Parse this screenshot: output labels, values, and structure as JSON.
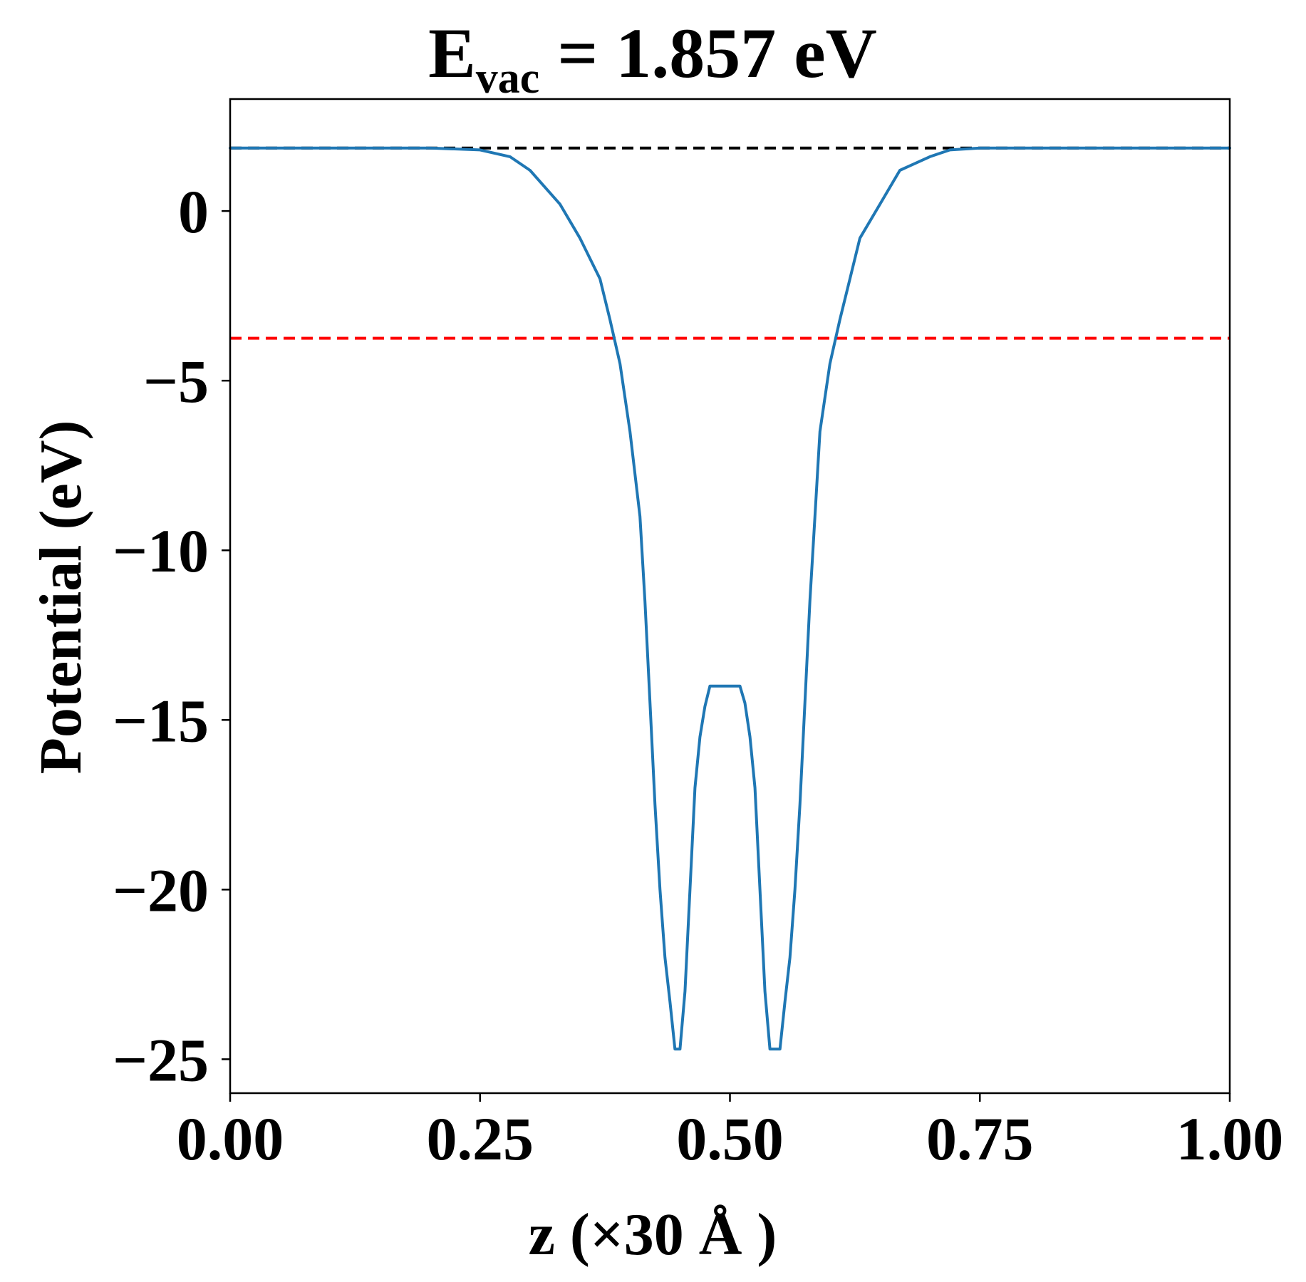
{
  "chart_data": {
    "type": "line",
    "title": {
      "main": "E",
      "subscript": "vac",
      "rest": " = 1.857 eV"
    },
    "xlabel": "z (×30 Å )",
    "ylabel": "Potential (eV)",
    "xlim": [
      0.0,
      1.0
    ],
    "ylim": [
      -26.0,
      3.3
    ],
    "xticks": [
      0.0,
      0.25,
      0.5,
      0.75,
      1.0
    ],
    "xtick_labels": [
      "0.00",
      "0.25",
      "0.50",
      "0.75",
      "1.00"
    ],
    "yticks": [
      0,
      -5,
      -10,
      -15,
      -20,
      -25
    ],
    "ytick_labels": [
      "0",
      "−5",
      "−10",
      "−15",
      "−20",
      "−25"
    ],
    "grid": false,
    "legend": "none",
    "reference_lines": [
      {
        "y": 1.857,
        "color": "#000000",
        "style": "dashed"
      },
      {
        "y": -3.75,
        "color": "#ff0000",
        "style": "dashed"
      }
    ],
    "series": [
      {
        "color": "#1f77b4",
        "x": [
          0.0,
          0.05,
          0.1,
          0.15,
          0.2,
          0.25,
          0.28,
          0.3,
          0.33,
          0.35,
          0.37,
          0.38,
          0.39,
          0.4,
          0.41,
          0.415,
          0.42,
          0.425,
          0.43,
          0.435,
          0.44,
          0.445,
          0.45,
          0.455,
          0.46,
          0.465,
          0.47,
          0.475,
          0.48,
          0.485,
          0.49,
          0.5,
          0.51,
          0.515,
          0.52,
          0.525,
          0.53,
          0.535,
          0.54,
          0.545,
          0.55,
          0.555,
          0.56,
          0.565,
          0.57,
          0.575,
          0.58,
          0.585,
          0.59,
          0.6,
          0.61,
          0.62,
          0.63,
          0.65,
          0.67,
          0.7,
          0.72,
          0.75,
          0.8,
          0.85,
          0.9,
          0.95,
          1.0
        ],
        "y": [
          1.857,
          1.857,
          1.857,
          1.857,
          1.857,
          1.8,
          1.6,
          1.2,
          0.2,
          -0.8,
          -2.0,
          -3.2,
          -4.5,
          -6.5,
          -9.0,
          -11.5,
          -14.5,
          -17.5,
          -20.0,
          -22.0,
          -23.3,
          -24.7,
          -24.7,
          -23.0,
          -20.0,
          -17.0,
          -15.5,
          -14.6,
          -14.0,
          -14.0,
          -14.0,
          -14.0,
          -14.0,
          -14.5,
          -15.5,
          -17.0,
          -20.0,
          -23.0,
          -24.7,
          -24.7,
          -24.7,
          -23.3,
          -22.0,
          -20.0,
          -17.5,
          -14.5,
          -11.5,
          -9.0,
          -6.5,
          -4.5,
          -3.2,
          -2.0,
          -0.8,
          0.2,
          1.2,
          1.6,
          1.8,
          1.857,
          1.857,
          1.857,
          1.857,
          1.857,
          1.857
        ]
      }
    ]
  }
}
